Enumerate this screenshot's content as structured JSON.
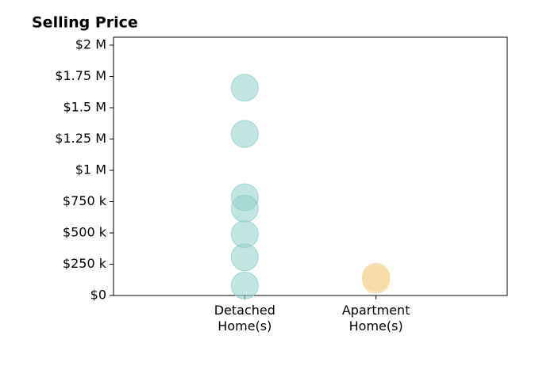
{
  "chart_data": {
    "type": "strip",
    "title": "Selling Price",
    "categories": [
      "Detached\nHome(s)",
      "Apartment\nHome(s)"
    ],
    "values": [
      [
        1660000,
        1290000,
        785000,
        695000,
        490000,
        305000,
        80000
      ],
      [
        150000,
        140000,
        125000
      ]
    ],
    "colors": [
      "#8ecfc9",
      "#f5d9a0"
    ],
    "xlim": [
      0,
      3
    ],
    "ylim": [
      0,
      2000000
    ],
    "yticks": [
      {
        "value": 0,
        "label": "$0"
      },
      {
        "value": 250000,
        "label": "$250 k"
      },
      {
        "value": 500000,
        "label": "$500 k"
      },
      {
        "value": 750000,
        "label": "$750 k"
      },
      {
        "value": 1000000,
        "label": "$1 M"
      },
      {
        "value": 1250000,
        "label": "$1.25 M"
      },
      {
        "value": 1500000,
        "label": "$1.5 M"
      },
      {
        "value": 1750000,
        "label": "$1.75 M"
      },
      {
        "value": 2000000,
        "label": "$2 M"
      }
    ]
  }
}
